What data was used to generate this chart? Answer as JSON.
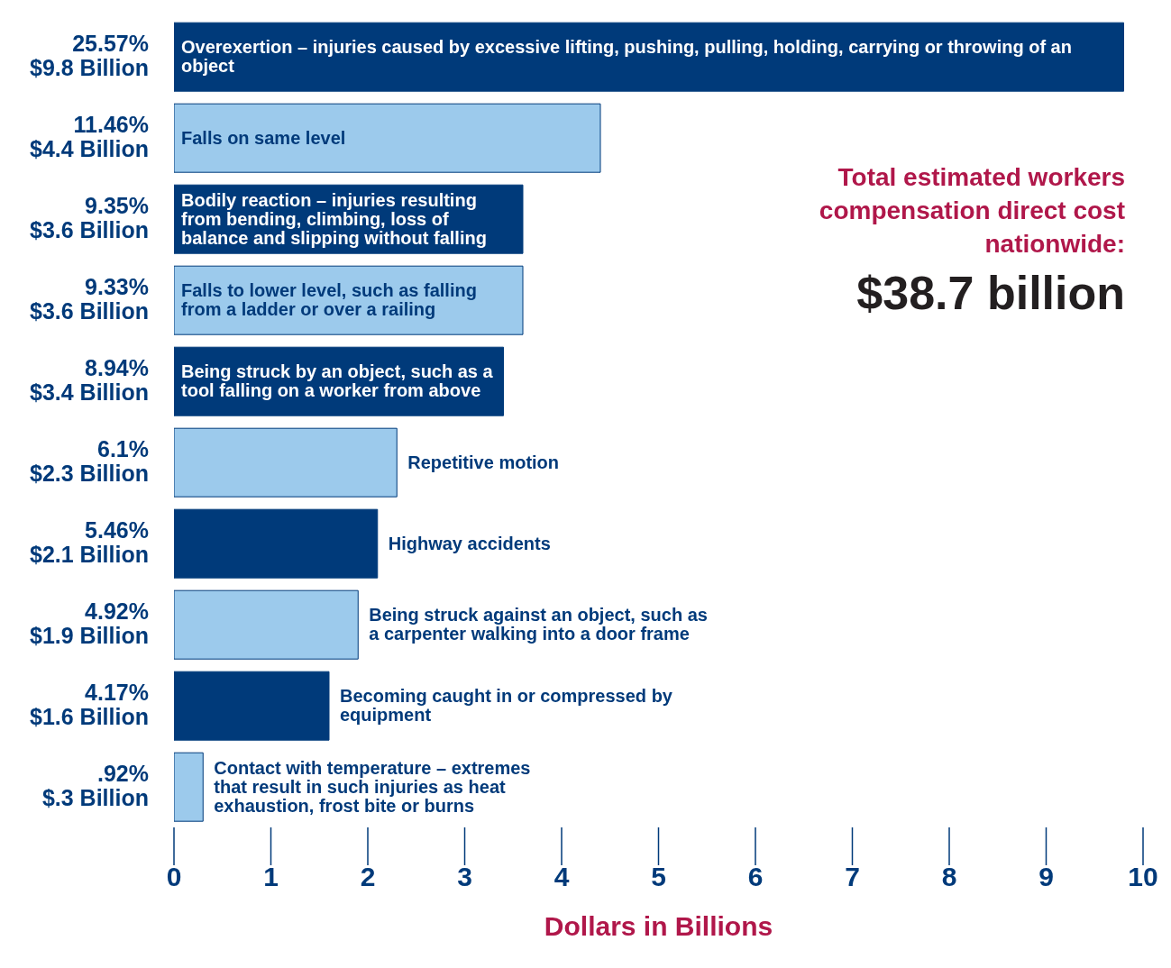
{
  "chart_data": {
    "type": "bar",
    "orientation": "horizontal",
    "xlabel": "Dollars in Billions",
    "categories": [
      "Overexertion – injuries caused by excessive lifting, pushing, pulling, holding, carrying or throwing of an object",
      "Falls on same level",
      "Bodily reaction – injuries resulting from bending, climbing, loss of balance and slipping without falling",
      "Falls to lower level, such as falling from a ladder or over a railing",
      "Being struck by an object, such as a tool falling on a worker from above",
      "Repetitive motion",
      "Highway accidents",
      "Being struck against an object, such as a carpenter walking into a door frame",
      "Becoming caught in or compressed by equipment",
      "Contact with temperature – extremes that result in such injuries as heat exhaustion, frost bite or burns"
    ],
    "values": [
      9.8,
      4.4,
      3.6,
      3.6,
      3.4,
      2.3,
      2.1,
      1.9,
      1.6,
      0.3
    ],
    "colors": [
      "#003a7a",
      "#9ccaec",
      "#003a7a",
      "#9ccaec",
      "#003a7a",
      "#9ccaec",
      "#003a7a",
      "#9ccaec",
      "#003a7a",
      "#9ccaec"
    ],
    "value_labels": [
      "25.57%\n$9.8 Billion",
      "11.46%\n$4.4 Billion",
      "9.35%\n$3.6 Billion",
      "9.33%\n$3.6 Billion",
      "8.94%\n$3.4 Billion",
      "6.1%\n$2.3 Billion",
      "5.46%\n$2.1 Billion",
      "4.92%\n$1.9 Billion",
      "4.17%\n$1.6 Billion",
      ".92%\n$.3 Billion"
    ],
    "xlim": [
      0,
      10
    ],
    "xticks": [
      0,
      1,
      2,
      3,
      4,
      5,
      6,
      7,
      8,
      9,
      10
    ],
    "annotations": [
      "Total estimated workers compensation direct cost nationwide:",
      "$38.7 billion"
    ]
  }
}
